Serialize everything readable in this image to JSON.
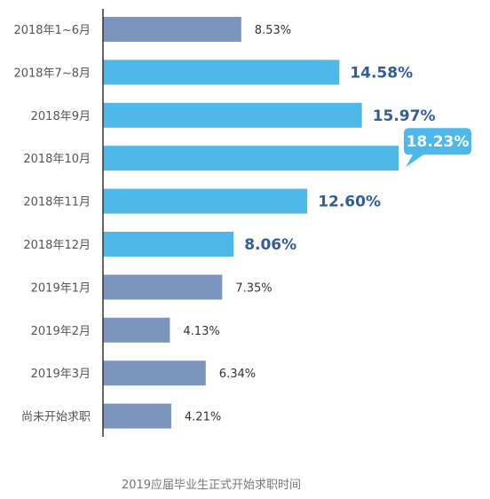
{
  "chart_data": {
    "type": "bar",
    "orientation": "horizontal",
    "caption": "2019应届毕业生正式开始求职时间",
    "categories": [
      "2018年1~6月",
      "2018年7~8月",
      "2018年9月",
      "2018年10月",
      "2018年11月",
      "2018年12月",
      "2019年1月",
      "2019年2月",
      "2019年3月",
      "尚未开始求职"
    ],
    "values": [
      8.53,
      14.58,
      15.97,
      18.23,
      12.6,
      8.06,
      7.35,
      4.13,
      6.34,
      4.21
    ],
    "value_labels": [
      "8.53%",
      "14.58%",
      "15.97%",
      "18.23%",
      "12.60%",
      "8.06%",
      "7.35%",
      "4.13%",
      "6.34%",
      "4.21%"
    ],
    "highlighted": [
      false,
      true,
      true,
      true,
      true,
      true,
      false,
      false,
      false,
      false
    ],
    "callout_index": 3,
    "xlim": [
      0,
      18.23
    ],
    "grid": false,
    "legend": "none",
    "colors": {
      "normal_bar": "#7b95bf",
      "highlight_bar": "#4fb8ea",
      "axis": "#333333",
      "category_text": "#555555",
      "normal_label": "#333333",
      "highlight_label": "#2f5d9e",
      "callout_bg": "#4fb8ea",
      "callout_text": "#ffffff",
      "caption_text": "#777777"
    }
  }
}
